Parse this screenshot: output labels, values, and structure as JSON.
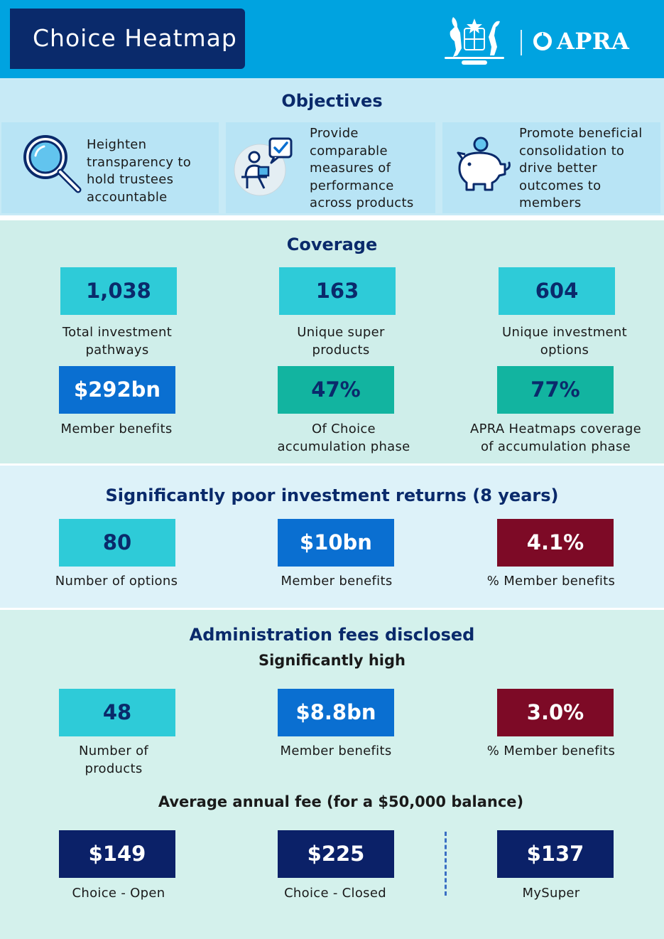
{
  "header": {
    "title": "Choice Heatmap",
    "logo_text": "APRA",
    "brand_color": "#00a3e0"
  },
  "objectives": {
    "title": "Objectives",
    "items": [
      {
        "icon": "magnifier-icon",
        "lines": [
          "Heighten",
          "transparency to",
          "hold trustees",
          "accountable"
        ]
      },
      {
        "icon": "presenter-checkmark-icon",
        "lines": [
          "Provide",
          "comparable",
          "measures of",
          "performance",
          "across products"
        ]
      },
      {
        "icon": "piggy-bank-icon",
        "lines": [
          "Promote beneficial",
          "consolidation to",
          "drive better",
          "outcomes to",
          "members"
        ]
      }
    ]
  },
  "coverage": {
    "title": "Coverage",
    "stats": [
      {
        "value": "1,038",
        "label_lines": [
          "Total investment",
          "pathways"
        ]
      },
      {
        "value": "163",
        "label_lines": [
          "Unique super",
          "products"
        ]
      },
      {
        "value": "604",
        "label_lines": [
          "Unique investment",
          "options"
        ]
      },
      {
        "value": "$292bn",
        "label_lines": [
          "Member benefits"
        ]
      },
      {
        "value": "47%",
        "label_lines": [
          "Of Choice",
          "accumulation phase"
        ]
      },
      {
        "value": "77%",
        "label_lines": [
          "APRA Heatmaps coverage",
          "of accumulation phase"
        ]
      }
    ]
  },
  "poor_returns": {
    "title": "Significantly poor investment returns (8 years)",
    "stats": [
      {
        "value": "80",
        "label_lines": [
          "Number of options"
        ]
      },
      {
        "value": "$10bn",
        "label_lines": [
          "Member benefits"
        ]
      },
      {
        "value": "4.1%",
        "label_lines": [
          "% Member benefits"
        ]
      }
    ]
  },
  "admin_fees": {
    "title": "Administration fees disclosed",
    "subtitle": "Significantly high",
    "stats": [
      {
        "value": "48",
        "label_lines": [
          "Number of",
          "products"
        ]
      },
      {
        "value": "$8.8bn",
        "label_lines": [
          "Member benefits"
        ]
      },
      {
        "value": "3.0%",
        "label_lines": [
          "% Member benefits"
        ]
      }
    ],
    "avg_title": "Average annual fee (for a $50,000 balance)",
    "avg_stats": [
      {
        "value": "$149",
        "label_lines": [
          "Choice - Open"
        ]
      },
      {
        "value": "$225",
        "label_lines": [
          "Choice - Closed"
        ]
      },
      {
        "value": "$137",
        "label_lines": [
          "MySuper"
        ]
      }
    ]
  },
  "colors": {
    "navy": "#0a2a6b",
    "teal": "#2ecbd8",
    "blue": "#0a6fd1",
    "green": "#12b4a0",
    "maroon": "#7d0a26"
  }
}
